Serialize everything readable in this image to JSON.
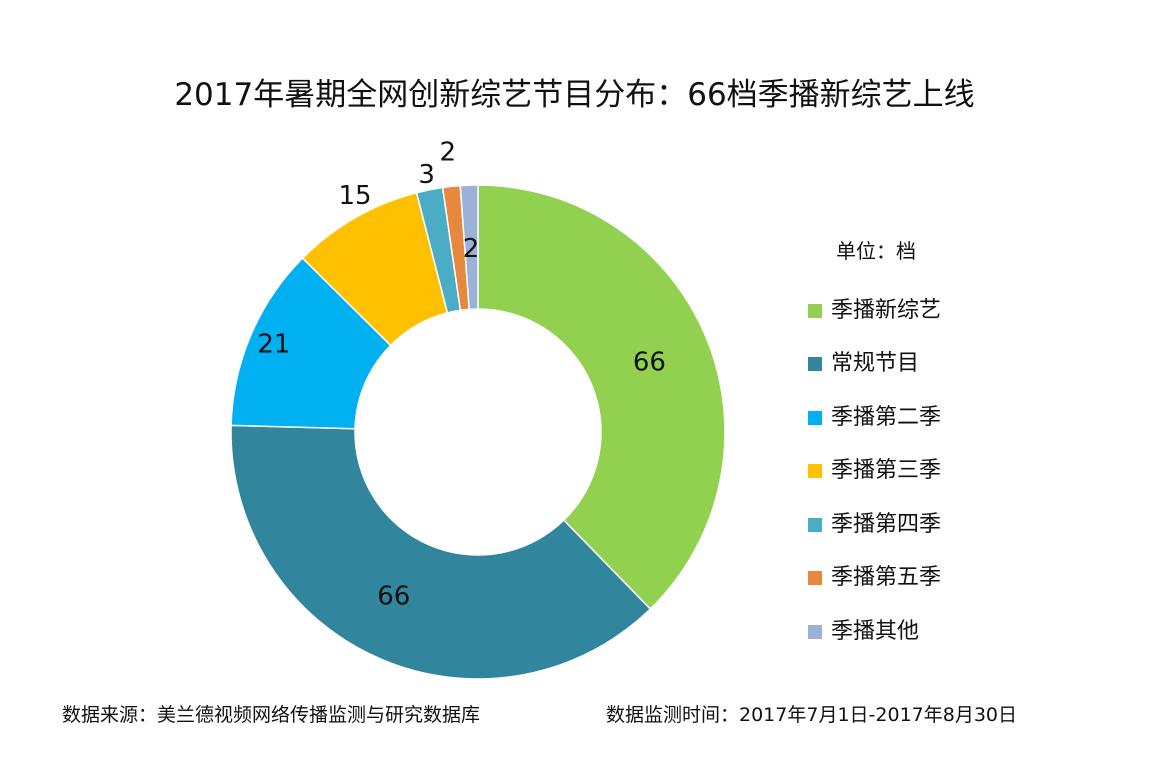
{
  "chart_data": {
    "type": "donut",
    "title": "2017年暑期全网创新综艺节目分布：66档季播新综艺上线",
    "unit_label": "单位：档",
    "legend_position": "right",
    "categories": [
      "季播新综艺",
      "常规节目",
      "季播第二季",
      "季播第三季",
      "季播第四季",
      "季播第五季",
      "季播其他"
    ],
    "values": [
      66,
      66,
      21,
      15,
      3,
      2,
      2
    ],
    "colors": [
      "#92d050",
      "#31859c",
      "#00b0f0",
      "#ffc000",
      "#4bacc6",
      "#e6883e",
      "#9bb1d8"
    ],
    "data_labels": [
      "66",
      "66",
      "21",
      "15",
      "3",
      "2",
      "2"
    ]
  },
  "footer": {
    "source": "数据来源：美兰德视频网络传播监测与研究数据库",
    "period": "数据监测时间：2017年7月1日-2017年8月30日"
  }
}
